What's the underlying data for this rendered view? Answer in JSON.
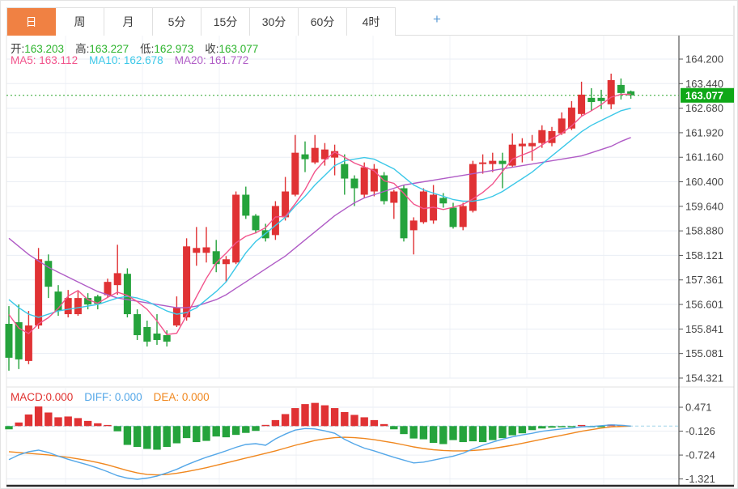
{
  "tabs": {
    "items": [
      {
        "label": "日",
        "active": true
      },
      {
        "label": "周",
        "active": false
      },
      {
        "label": "月",
        "active": false
      },
      {
        "label": "5分",
        "active": false
      },
      {
        "label": "15分",
        "active": false
      },
      {
        "label": "30分",
        "active": false
      },
      {
        "label": "60分",
        "active": false
      },
      {
        "label": "4时",
        "active": false
      }
    ],
    "plus_icon": "+"
  },
  "ohlc": {
    "open_label": "开:",
    "open_value": "163.203",
    "high_label": "高:",
    "high_value": "163.227",
    "low_label": "低:",
    "low_value": "162.973",
    "close_label": "收:",
    "close_value": "163.077"
  },
  "ma": {
    "ma5_label": "MA5:",
    "ma5_value": "163.112",
    "ma10_label": "MA10:",
    "ma10_value": "162.678",
    "ma20_label": "MA20:",
    "ma20_value": "161.772"
  },
  "macd_header": {
    "macd_label": "MACD:",
    "macd_value": "0.000",
    "diff_label": "DIFF:",
    "diff_value": "0.000",
    "dea_label": "DEA:",
    "dea_value": "0.000"
  },
  "price_axis": {
    "ticks": [
      164.2,
      163.44,
      162.68,
      161.92,
      161.16,
      160.4,
      159.64,
      158.88,
      158.121,
      157.361,
      156.601,
      155.841,
      155.081,
      154.321
    ],
    "current_tag": "163.077",
    "current_price": 163.077
  },
  "macd_axis": {
    "ticks": [
      0.471,
      -0.126,
      -0.724,
      -1.321
    ]
  },
  "colors": {
    "up": "#e03234",
    "down": "#25a33c",
    "ma5": "#f2548c",
    "ma10": "#3cc8e8",
    "ma20": "#b05cc6",
    "ohlc_value": "#2db42d",
    "macd_label": "#e0312e",
    "diff": "#54a7e8",
    "dea": "#f0871e",
    "tag_bg": "#0fa817",
    "dotted_line": "#2ca52c",
    "grid": "#eaeef4",
    "axis_line": "#555",
    "tick_text": "#444",
    "zero_dash": "#9fd4e8",
    "tab_active": "#f08143"
  },
  "chart_data": [
    {
      "type": "candlestick",
      "title": "日K线 (daily candles, OHLC)",
      "ylim": [
        154.321,
        164.2
      ],
      "legend": [
        "MA5",
        "MA10",
        "MA20"
      ],
      "current_price": 163.077,
      "candles": [
        [
          156.0,
          156.55,
          154.55,
          154.95
        ],
        [
          156.05,
          156.6,
          154.6,
          154.9
        ],
        [
          154.85,
          156.4,
          154.75,
          155.95
        ],
        [
          155.95,
          158.35,
          155.85,
          158.0
        ],
        [
          157.95,
          158.15,
          156.8,
          157.15
        ],
        [
          157.0,
          157.2,
          156.25,
          156.4
        ],
        [
          156.3,
          157.05,
          156.2,
          156.8
        ],
        [
          156.3,
          157.0,
          156.25,
          156.8
        ],
        [
          156.8,
          156.95,
          156.45,
          156.6
        ],
        [
          156.85,
          156.9,
          156.45,
          156.62
        ],
        [
          156.89,
          157.4,
          156.8,
          157.3
        ],
        [
          157.2,
          158.45,
          156.9,
          157.57
        ],
        [
          157.55,
          157.72,
          156.2,
          156.3
        ],
        [
          156.3,
          156.45,
          155.5,
          155.65
        ],
        [
          155.9,
          156.1,
          155.3,
          155.45
        ],
        [
          155.7,
          156.3,
          155.35,
          155.5
        ],
        [
          155.65,
          155.8,
          155.3,
          155.45
        ],
        [
          155.95,
          156.85,
          155.9,
          156.5
        ],
        [
          156.2,
          158.65,
          156.1,
          158.4
        ],
        [
          158.2,
          159.0,
          157.8,
          158.35
        ],
        [
          158.2,
          159.0,
          157.9,
          158.37
        ],
        [
          158.25,
          158.6,
          157.6,
          157.85
        ],
        [
          157.85,
          158.1,
          157.3,
          158.0
        ],
        [
          157.9,
          160.1,
          157.85,
          160.0
        ],
        [
          160.0,
          160.25,
          159.25,
          159.35
        ],
        [
          159.35,
          159.4,
          158.8,
          158.9
        ],
        [
          158.9,
          159.1,
          158.55,
          158.65
        ],
        [
          158.75,
          159.8,
          158.6,
          159.65
        ],
        [
          159.3,
          160.55,
          159.2,
          160.1
        ],
        [
          160.0,
          161.85,
          159.95,
          161.3
        ],
        [
          161.25,
          161.65,
          160.7,
          161.1
        ],
        [
          161.0,
          161.85,
          160.95,
          161.45
        ],
        [
          161.1,
          161.6,
          160.9,
          161.4
        ],
        [
          161.15,
          161.55,
          160.6,
          161.35
        ],
        [
          160.95,
          161.25,
          160.0,
          160.5
        ],
        [
          160.5,
          160.6,
          159.65,
          160.2
        ],
        [
          160.0,
          161.0,
          159.9,
          160.85
        ],
        [
          160.1,
          160.95,
          159.95,
          160.8
        ],
        [
          160.6,
          160.7,
          159.7,
          159.8
        ],
        [
          159.75,
          160.15,
          159.25,
          160.1
        ],
        [
          160.2,
          160.3,
          158.55,
          158.65
        ],
        [
          158.9,
          159.3,
          158.15,
          159.2
        ],
        [
          159.15,
          160.2,
          159.1,
          160.1
        ],
        [
          159.2,
          160.3,
          159.1,
          160.0
        ],
        [
          159.9,
          160.05,
          159.6,
          159.73
        ],
        [
          159.6,
          159.75,
          158.95,
          159.0
        ],
        [
          159.0,
          159.75,
          158.9,
          159.65
        ],
        [
          159.5,
          161.05,
          159.45,
          160.95
        ],
        [
          160.95,
          161.25,
          160.65,
          161.0
        ],
        [
          160.95,
          161.3,
          160.7,
          161.05
        ],
        [
          161.05,
          161.3,
          160.2,
          160.95
        ],
        [
          160.9,
          161.9,
          160.85,
          161.55
        ],
        [
          161.5,
          161.75,
          161.0,
          161.58
        ],
        [
          161.5,
          161.85,
          161.05,
          161.6
        ],
        [
          161.6,
          162.15,
          161.45,
          162.0
        ],
        [
          161.6,
          162.1,
          161.5,
          161.97
        ],
        [
          161.9,
          162.55,
          161.85,
          162.36
        ],
        [
          162.05,
          162.9,
          162.0,
          162.7
        ],
        [
          162.5,
          163.5,
          162.45,
          163.1
        ],
        [
          163.0,
          163.3,
          162.6,
          162.87
        ],
        [
          163.0,
          163.25,
          162.65,
          162.9
        ],
        [
          162.8,
          163.75,
          162.65,
          163.55
        ],
        [
          163.4,
          163.6,
          162.95,
          163.15
        ],
        [
          163.203,
          163.227,
          162.973,
          163.077
        ]
      ],
      "ma5": [
        156.29,
        155.87,
        155.7,
        156.0,
        156.19,
        156.48,
        156.86,
        157.03,
        156.75,
        156.64,
        156.82,
        156.98,
        156.88,
        156.69,
        156.45,
        156.09,
        155.67,
        155.71,
        156.26,
        156.84,
        157.41,
        157.89,
        158.19,
        158.51,
        158.71,
        158.82,
        158.98,
        159.31,
        159.33,
        159.72,
        160.16,
        160.72,
        161.07,
        161.32,
        161.16,
        160.98,
        160.86,
        160.74,
        160.43,
        160.35,
        160.04,
        159.71,
        159.57,
        159.61,
        159.54,
        159.61,
        159.7,
        159.87,
        160.07,
        160.33,
        160.72,
        161.1,
        161.23,
        161.35,
        161.54,
        161.74,
        161.9,
        162.13,
        162.43,
        162.6,
        162.79,
        163.02,
        163.11,
        163.112
      ],
      "ma10": [
        156.75,
        156.5,
        156.3,
        156.2,
        156.3,
        156.4,
        156.45,
        156.5,
        156.55,
        156.6,
        156.7,
        156.8,
        156.85,
        156.8,
        156.7,
        156.55,
        156.4,
        156.3,
        156.35,
        156.5,
        156.75,
        157.0,
        157.3,
        157.75,
        158.2,
        158.55,
        158.8,
        159.05,
        159.3,
        159.65,
        159.95,
        160.3,
        160.6,
        160.9,
        161.05,
        161.1,
        161.15,
        161.1,
        160.95,
        160.8,
        160.55,
        160.3,
        160.15,
        160.05,
        159.95,
        159.85,
        159.8,
        159.8,
        159.85,
        159.95,
        160.1,
        160.3,
        160.5,
        160.7,
        160.95,
        161.2,
        161.45,
        161.7,
        161.95,
        162.15,
        162.3,
        162.45,
        162.6,
        162.678
      ],
      "ma20": [
        158.65,
        158.4,
        158.15,
        157.95,
        157.75,
        157.6,
        157.45,
        157.3,
        157.15,
        157.0,
        156.9,
        156.8,
        156.75,
        156.7,
        156.65,
        156.6,
        156.55,
        156.5,
        156.5,
        156.55,
        156.65,
        156.75,
        156.9,
        157.1,
        157.3,
        157.5,
        157.7,
        157.9,
        158.1,
        158.35,
        158.6,
        158.85,
        159.1,
        159.35,
        159.55,
        159.75,
        159.9,
        160.0,
        160.1,
        160.2,
        160.3,
        160.35,
        160.4,
        160.45,
        160.5,
        160.55,
        160.6,
        160.65,
        160.7,
        160.75,
        160.8,
        160.85,
        160.9,
        160.95,
        161.0,
        161.05,
        161.1,
        161.15,
        161.2,
        161.3,
        161.4,
        161.5,
        161.65,
        161.772
      ]
    },
    {
      "type": "macd-histogram",
      "title": "MACD (12,26,9)",
      "ylim": [
        -1.62,
        0.77
      ],
      "hist": [
        -0.08,
        0.09,
        0.29,
        0.49,
        0.34,
        0.22,
        0.24,
        0.2,
        0.13,
        0.07,
        0.02,
        -0.13,
        -0.47,
        -0.52,
        -0.57,
        -0.59,
        -0.52,
        -0.43,
        -0.3,
        -0.4,
        -0.37,
        -0.26,
        -0.28,
        -0.22,
        -0.17,
        -0.12,
        0.03,
        0.15,
        0.3,
        0.45,
        0.55,
        0.58,
        0.52,
        0.45,
        0.35,
        0.28,
        0.22,
        0.15,
        0.05,
        -0.08,
        -0.2,
        -0.31,
        -0.33,
        -0.42,
        -0.45,
        -0.35,
        -0.4,
        -0.38,
        -0.4,
        -0.35,
        -0.3,
        -0.23,
        -0.18,
        -0.1,
        -0.06,
        -0.04,
        -0.03,
        -0.02,
        0.01,
        -0.02,
        -0.01,
        0.04,
        0.01,
        0.0
      ],
      "diff": [
        -0.84,
        -0.72,
        -0.64,
        -0.6,
        -0.66,
        -0.75,
        -0.83,
        -0.9,
        -0.97,
        -1.05,
        -1.14,
        -1.24,
        -1.3,
        -1.33,
        -1.3,
        -1.25,
        -1.17,
        -1.08,
        -0.97,
        -0.87,
        -0.78,
        -0.7,
        -0.62,
        -0.53,
        -0.46,
        -0.44,
        -0.48,
        -0.32,
        -0.2,
        -0.1,
        -0.06,
        -0.07,
        -0.12,
        -0.18,
        -0.33,
        -0.45,
        -0.55,
        -0.62,
        -0.7,
        -0.78,
        -0.85,
        -0.92,
        -0.9,
        -0.85,
        -0.8,
        -0.75,
        -0.68,
        -0.57,
        -0.48,
        -0.4,
        -0.33,
        -0.27,
        -0.22,
        -0.18,
        -0.13,
        -0.1,
        -0.07,
        -0.05,
        -0.02,
        -0.01,
        0.01,
        0.03,
        0.02,
        0.0
      ],
      "dea": [
        -0.64,
        -0.66,
        -0.68,
        -0.7,
        -0.72,
        -0.75,
        -0.78,
        -0.82,
        -0.86,
        -0.91,
        -0.97,
        -1.04,
        -1.11,
        -1.17,
        -1.21,
        -1.22,
        -1.21,
        -1.18,
        -1.14,
        -1.09,
        -1.04,
        -0.98,
        -0.92,
        -0.86,
        -0.8,
        -0.74,
        -0.68,
        -0.62,
        -0.55,
        -0.48,
        -0.42,
        -0.36,
        -0.32,
        -0.29,
        -0.28,
        -0.29,
        -0.31,
        -0.34,
        -0.38,
        -0.42,
        -0.47,
        -0.52,
        -0.56,
        -0.59,
        -0.61,
        -0.62,
        -0.62,
        -0.61,
        -0.59,
        -0.56,
        -0.52,
        -0.48,
        -0.43,
        -0.38,
        -0.33,
        -0.28,
        -0.23,
        -0.18,
        -0.13,
        -0.09,
        -0.05,
        -0.02,
        -0.01,
        0.0
      ]
    }
  ]
}
